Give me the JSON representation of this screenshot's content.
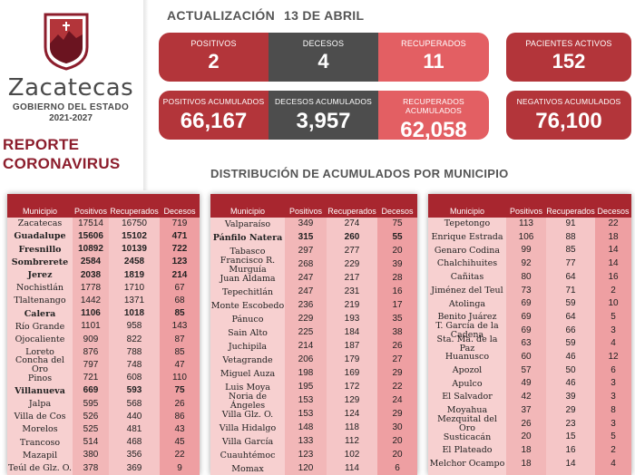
{
  "brand": {
    "name": "Zacatecas",
    "subtitle": "GOBIERNO DEL ESTADO",
    "years": "2021-2027",
    "report_line1": "REPORTE",
    "report_line2": "CORONAVIRUS"
  },
  "header": {
    "update_label": "ACTUALIZACIÓN",
    "update_date": "13 DE ABRIL"
  },
  "cards": {
    "positivos": {
      "label": "POSITIVOS",
      "value": "2"
    },
    "decesos": {
      "label": "DECESOS",
      "value": "4"
    },
    "recuperados": {
      "label": "RECUPERADOS",
      "value": "11"
    },
    "pacientes_activos": {
      "label": "PACIENTES ACTIVOS",
      "value": "152"
    },
    "positivos_acumulados": {
      "label": "POSITIVOS ACUMULADOS",
      "value": "66,167"
    },
    "decesos_acumulados": {
      "label": "DECESOS ACUMULADOS",
      "value": "3,957"
    },
    "recuperados_acumulados": {
      "label": "RECUPERADOS ACUMULADOS",
      "value": "62,058"
    },
    "negativos_acumulados": {
      "label": "NEGATIVOS ACUMULADOS",
      "value": "76,100"
    }
  },
  "section_title": "DISTRIBUCIÓN DE ACUMULADOS POR MUNICIPIO",
  "colors": {
    "accent_red": "#b3353a",
    "dark_gray": "#4d4d4d",
    "light_red": "#e35f63",
    "table_frame": "#a8262f"
  },
  "tables": [
    {
      "headers": [
        "Municipio",
        "Positivos",
        "Recuperados",
        "Decesos"
      ],
      "rows": [
        [
          "Zacatecas",
          "17514",
          "16750",
          "719"
        ],
        [
          "Guadalupe",
          "15606",
          "15102",
          "471"
        ],
        [
          "Fresnillo",
          "10892",
          "10139",
          "722"
        ],
        [
          "Sombrerete",
          "2584",
          "2458",
          "123"
        ],
        [
          "Jerez",
          "2038",
          "1819",
          "214"
        ],
        [
          "Nochistlán",
          "1778",
          "1710",
          "67"
        ],
        [
          "Tlaltenango",
          "1442",
          "1371",
          "68"
        ],
        [
          "Calera",
          "1106",
          "1018",
          "85"
        ],
        [
          "Río Grande",
          "1101",
          "958",
          "143"
        ],
        [
          "Ojocaliente",
          "909",
          "822",
          "87"
        ],
        [
          "Loreto",
          "876",
          "788",
          "85"
        ],
        [
          "Concha del Oro",
          "797",
          "748",
          "47"
        ],
        [
          "Pinos",
          "721",
          "608",
          "110"
        ],
        [
          "Villanueva",
          "669",
          "593",
          "75"
        ],
        [
          "Jalpa",
          "595",
          "568",
          "26"
        ],
        [
          "Villa de Cos",
          "526",
          "440",
          "86"
        ],
        [
          "Morelos",
          "525",
          "481",
          "43"
        ],
        [
          "Trancoso",
          "514",
          "468",
          "45"
        ],
        [
          "Mazapil",
          "380",
          "356",
          "22"
        ],
        [
          "Teúl de Glz. O.",
          "378",
          "369",
          "9"
        ]
      ]
    },
    {
      "headers": [
        "Municipio",
        "Positivos",
        "Recuperados",
        "Decesos"
      ],
      "rows": [
        [
          "Valparaíso",
          "349",
          "274",
          "75"
        ],
        [
          "Pánfilo Natera",
          "315",
          "260",
          "55"
        ],
        [
          "Tabasco",
          "297",
          "277",
          "20"
        ],
        [
          "Francisco R. Murguía",
          "268",
          "229",
          "39"
        ],
        [
          "Juan Aldama",
          "247",
          "217",
          "28"
        ],
        [
          "Tepechitlán",
          "247",
          "231",
          "16"
        ],
        [
          "Monte Escobedo",
          "236",
          "219",
          "17"
        ],
        [
          "Pánuco",
          "229",
          "193",
          "35"
        ],
        [
          "Sain Alto",
          "225",
          "184",
          "38"
        ],
        [
          "Juchipila",
          "214",
          "187",
          "26"
        ],
        [
          "Vetagrande",
          "206",
          "179",
          "27"
        ],
        [
          "Miguel Auza",
          "198",
          "169",
          "29"
        ],
        [
          "Luis Moya",
          "195",
          "172",
          "22"
        ],
        [
          "Noria de Ángeles",
          "153",
          "129",
          "24"
        ],
        [
          "Villa Glz. O.",
          "153",
          "124",
          "29"
        ],
        [
          "Villa Hidalgo",
          "148",
          "118",
          "30"
        ],
        [
          "Villa García",
          "133",
          "112",
          "20"
        ],
        [
          "Cuauhtémoc",
          "123",
          "102",
          "20"
        ],
        [
          "Momax",
          "120",
          "114",
          "6"
        ]
      ]
    },
    {
      "headers": [
        "Municipio",
        "Positivos",
        "Recuperados",
        "Decesos"
      ],
      "rows": [
        [
          "Tepetongo",
          "113",
          "91",
          "22"
        ],
        [
          "Enrique Estrada",
          "106",
          "88",
          "18"
        ],
        [
          "Genaro Codina",
          "99",
          "85",
          "14"
        ],
        [
          "Chalchihuites",
          "92",
          "77",
          "14"
        ],
        [
          "Cañitas",
          "80",
          "64",
          "16"
        ],
        [
          "Jiménez del Teul",
          "73",
          "71",
          "2"
        ],
        [
          "Atolinga",
          "69",
          "59",
          "10"
        ],
        [
          "Benito Juárez",
          "69",
          "64",
          "5"
        ],
        [
          "T. García de la Cadena",
          "69",
          "66",
          "3"
        ],
        [
          "Sta. Ma. de la Paz",
          "63",
          "59",
          "4"
        ],
        [
          "Huanusco",
          "60",
          "46",
          "12"
        ],
        [
          "Apozol",
          "57",
          "50",
          "6"
        ],
        [
          "Apulco",
          "49",
          "46",
          "3"
        ],
        [
          "El Salvador",
          "42",
          "39",
          "3"
        ],
        [
          "Moyahua",
          "37",
          "29",
          "8"
        ],
        [
          "Mezquital del Oro",
          "26",
          "23",
          "3"
        ],
        [
          "Susticacán",
          "20",
          "15",
          "5"
        ],
        [
          "El Plateado",
          "18",
          "16",
          "2"
        ],
        [
          "Melchor Ocampo",
          "18",
          "14",
          "4"
        ]
      ]
    }
  ]
}
